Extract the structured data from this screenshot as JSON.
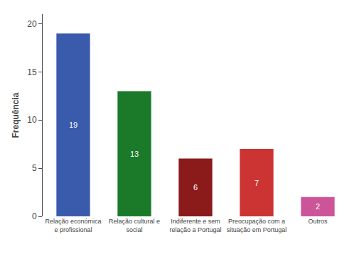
{
  "chart_data": {
    "type": "bar",
    "categories": [
      "Relação económica\ne profissional",
      "Relação cultural e\nsocial",
      "Indiferente e sem\nrelação a Portugal",
      "Preocupação com a\nsituação em Portugal",
      "Outros"
    ],
    "values": [
      19,
      13,
      6,
      7,
      2
    ],
    "colors": [
      "#3a5aab",
      "#1a7a2a",
      "#8b1a1a",
      "#cc3333",
      "#cc5599"
    ],
    "ylabel": "Frequência",
    "ylim": [
      0,
      21
    ],
    "yticks": [
      0,
      5,
      10,
      15,
      20
    ],
    "grid": false,
    "data_labels": true
  }
}
